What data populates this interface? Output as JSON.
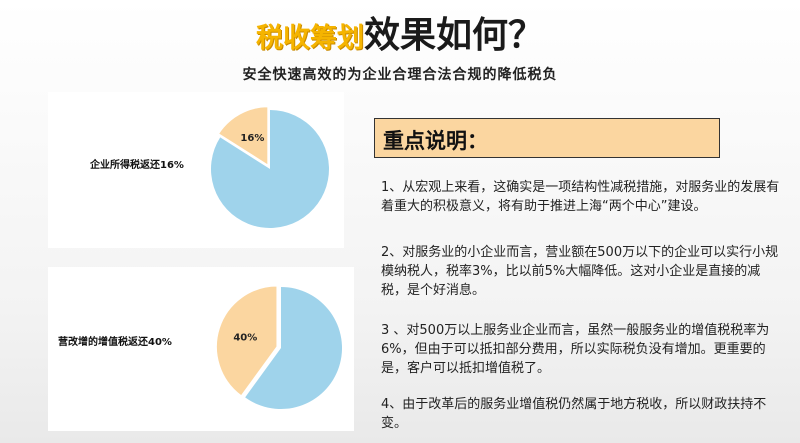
{
  "header": {
    "title_accent": "税收筹划",
    "title_main": "效果如何？",
    "subtitle": "安全快速高效的为企业合理合法合规的降低税负"
  },
  "colors": {
    "accent_yellow": "#f5b400",
    "pie_blue": "#9fd3eb",
    "pie_orange": "#fbd6a0",
    "key_box_fill": "#fbd6a0"
  },
  "pies": [
    {
      "label": "企业所得税返还16%",
      "slice_label": "16%",
      "slice_value": 16,
      "rest_value": 84
    },
    {
      "label": "营改增的增值税返还40%",
      "slice_label": "40%",
      "slice_value": 40,
      "rest_value": 60
    }
  ],
  "key_points": {
    "title": "重点说明：",
    "paragraphs": [
      "1、从宏观上来看，这确实是一项结构性减税措施，对服务业的发展有着重大的积极意义，将有助于推进上海“两个中心”建设。",
      "2、对服务业的小企业而言，营业额在500万以下的企业可以实行小规模纳税人，税率3%，比以前5%大幅降低。这对小企业是直接的减税，是个好消息。",
      "3 、对500万以上服务业企业而言，虽然一般服务业的增值税税率为6%，但由于可以抵扣部分费用，所以实际税负没有增加。更重要的是，客户可以抵扣增值税了。",
      "4、由于改革后的服务业增值税仍然属于地方税收，所以财政扶持不变。"
    ]
  }
}
